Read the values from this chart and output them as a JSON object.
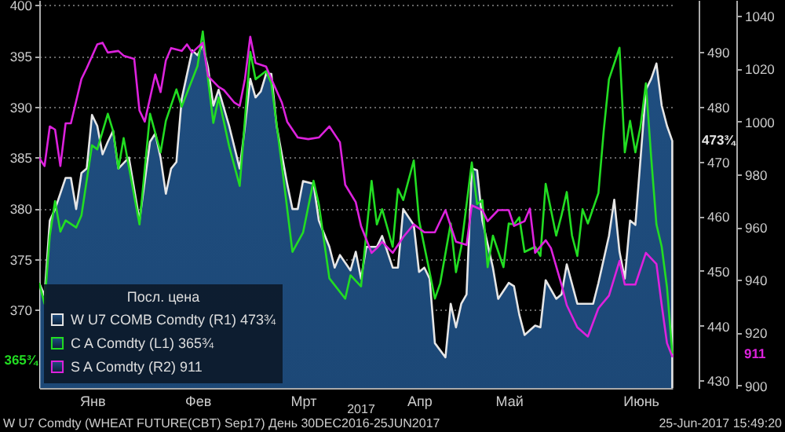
{
  "chart_data": {
    "type": "line",
    "legend": "bottom left",
    "legend_title": "Посл. цена",
    "grid": "y",
    "categories": [
      null,
      null,
      null,
      null,
      null,
      null,
      null,
      null,
      null,
      null,
      "Янв",
      null,
      null,
      null,
      null,
      null,
      null,
      null,
      null,
      null,
      null,
      null,
      null,
      null,
      null,
      null,
      null,
      null,
      null,
      null,
      "Фев",
      null,
      null,
      null,
      null,
      null,
      null,
      null,
      null,
      null,
      null,
      null,
      null,
      null,
      null,
      null,
      null,
      null,
      null,
      null,
      "Мрт",
      null,
      null,
      null,
      null,
      null,
      null,
      null,
      null,
      null,
      null,
      null,
      null,
      null,
      null,
      null,
      null,
      null,
      null,
      null,
      null,
      null,
      "Апр",
      null,
      null,
      null,
      null,
      null,
      null,
      null,
      null,
      null,
      null,
      null,
      null,
      null,
      null,
      null,
      null,
      "Май",
      null,
      null,
      null,
      null,
      null,
      null,
      null,
      null,
      null,
      null,
      null,
      null,
      null,
      null,
      null,
      null,
      null,
      null,
      null,
      null,
      null,
      null,
      null,
      null,
      "Июнь",
      null,
      null,
      null,
      null,
      null,
      null
    ],
    "ylim": [
      362.3,
      400.5
    ],
    "yticks": [
      370,
      375,
      380,
      385,
      390,
      395,
      400
    ],
    "y2lim": [
      428.6,
      499.5
    ],
    "y2ticks": [
      430,
      440,
      450,
      460,
      470,
      480,
      490
    ],
    "y3lim": [
      899,
      1046
    ],
    "y3ticks": [
      900,
      920,
      940,
      960,
      980,
      1000,
      1020,
      1040
    ],
    "series": [
      {
        "name": "W U7 COMB Comdty (R1) 473¾",
        "type": "area",
        "axis": "y2",
        "color": "#e6e6e6",
        "values": [
          447.8,
          445.5,
          459.2,
          461.3,
          null,
          467.0,
          467.0,
          461.3,
          467.9,
          468.7,
          478.5,
          476.5,
          471.3,
          473.6,
          475.6,
          468.7,
          null,
          470.7,
          null,
          459.2,
          null,
          473.6,
          475.1,
          470.7,
          464.1,
          468.7,
          469.9,
          481.4,
          null,
          490.3,
          489.4,
          491.4,
          487.1,
          480.2,
          483.1,
          null,
          476.5,
          null,
          468.7,
          476.5,
          485.1,
          481.7,
          482.8,
          486.0,
          486.0,
          476.5,
          null,
          465.9,
          461.3,
          461.3,
          466.4,
          null,
          465.9,
          459.2,
          null,
          454.4,
          450.6,
          452.9,
          null,
          450.1,
          453.5,
          448.6,
          454.4,
          null,
          454.4,
          456.4,
          null,
          450.6,
          450.6,
          461.3,
          null,
          458.4,
          449.8,
          450.6,
          448.6,
          436.8,
          null,
          434.2,
          444.0,
          439.7,
          444.0,
          445.7,
          468.7,
          468.4,
          459.2,
          null,
          450.6,
          444.9,
          null,
          447.8,
          447.2,
          442.0,
          438.3,
          null,
          440.0,
          439.7,
          448.3,
          null,
          444.9,
          445.7,
          451.2,
          null,
          444.0,
          444.0,
          null,
          444.0,
          447.8,
          null,
          456.4,
          463.0,
          453.5,
          448.6,
          459.2,
          458.4,
          470.7,
          483.1,
          485.1,
          487.9,
          480.2,
          476.5,
          473.75
        ]
      },
      {
        "name": "C A Comdty (L1) 365¾",
        "axis": "y",
        "color": "#22dd22",
        "values": [
          372.6,
          370.6,
          377.3,
          380.7,
          377.7,
          378.8,
          null,
          378.1,
          379.3,
          null,
          386.2,
          385.8,
          null,
          389.3,
          387.6,
          383.9,
          386.9,
          null,
          null,
          378.4,
          null,
          389.3,
          null,
          385.5,
          388.6,
          null,
          391.7,
          390.0,
          null,
          null,
          394.0,
          397.4,
          392.7,
          388.4,
          390.9,
          null,
          386.1,
          null,
          382.2,
          null,
          395.4,
          392.7,
          null,
          393.5,
          392.3,
          null,
          384.2,
          null,
          375.7,
          null,
          377.6,
          null,
          382.7,
          380.4,
          null,
          373.1,
          null,
          null,
          371.1,
          373.4,
          null,
          372.3,
          null,
          382.7,
          378.4,
          379.9,
          null,
          376.2,
          381.9,
          380.8,
          null,
          384.7,
          378.8,
          null,
          373.7,
          371.1,
          372.6,
          null,
          378.5,
          373.7,
          376.2,
          null,
          384.5,
          380.4,
          380.8,
          374.2,
          377.3,
          null,
          374.2,
          378.5,
          378.4,
          379.1,
          375.7,
          null,
          376.2,
          375.3,
          382.4,
          null,
          377.3,
          379.3,
          381.6,
          377.3,
          375.3,
          379.9,
          378.5,
          null,
          381.5,
          387.6,
          392.7,
          null,
          395.8,
          385.5,
          388.6,
          385.5,
          388.1,
          392.3,
          385.0,
          378.4,
          376.2,
          372.2,
          365.75
        ]
      },
      {
        "name": "S A Comdty (R2) 911",
        "axis": "y3",
        "color": "#dd22dd",
        "values": [
          986.1,
          983.1,
          998.1,
          996.9,
          983.1,
          999.3,
          999.3,
          null,
          1016.1,
          1020.2,
          null,
          1029.2,
          1029.8,
          1026.1,
          null,
          1026.7,
          1024.9,
          null,
          1023.7,
          1004.1,
          999.9,
          null,
          1017.8,
          1011.1,
          1023.1,
          1027.8,
          null,
          1026.7,
          1029.2,
          1026.1,
          null,
          1029.8,
          1017.2,
          null,
          1013.1,
          1011.9,
          null,
          1007.1,
          1005.9,
          1016.1,
          1032.1,
          1022.1,
          null,
          1020.8,
          1016.1,
          null,
          1007.1,
          999.9,
          null,
          993.9,
          null,
          993.3,
          null,
          993.9,
          null,
          998.1,
          null,
          992.1,
          976.0,
          null,
          969.4,
          960.4,
          null,
          950.2,
          952.0,
          954.4,
          null,
          950.2,
          null,
          956.2,
          null,
          961.0,
          null,
          958.0,
          null,
          958.0,
          null,
          966.4,
          null,
          954.4,
          null,
          953.2,
          968.2,
          null,
          966.4,
          962.2,
          null,
          966.4,
          null,
          966.4,
          960.4,
          null,
          962.2,
          967.0,
          950.2,
          null,
          955.0,
          952.0,
          null,
          938.2,
          930.4,
          null,
          922.0,
          null,
          918.5,
          null,
          929.2,
          null,
          934.0,
          null,
          947.2,
          938.2,
          null,
          938.2,
          null,
          950.2,
          null,
          946.0,
          930.4,
          916.0,
          911
        ]
      }
    ],
    "annotations": [
      "2017",
      "W U7 Comdty (WHEAT FUTURE(CBT) Sep17)  День 30DEC2016-25JUN2017",
      "25-Jun-2017 15:49:20",
      "473¾",
      "365¾",
      "911"
    ]
  }
}
